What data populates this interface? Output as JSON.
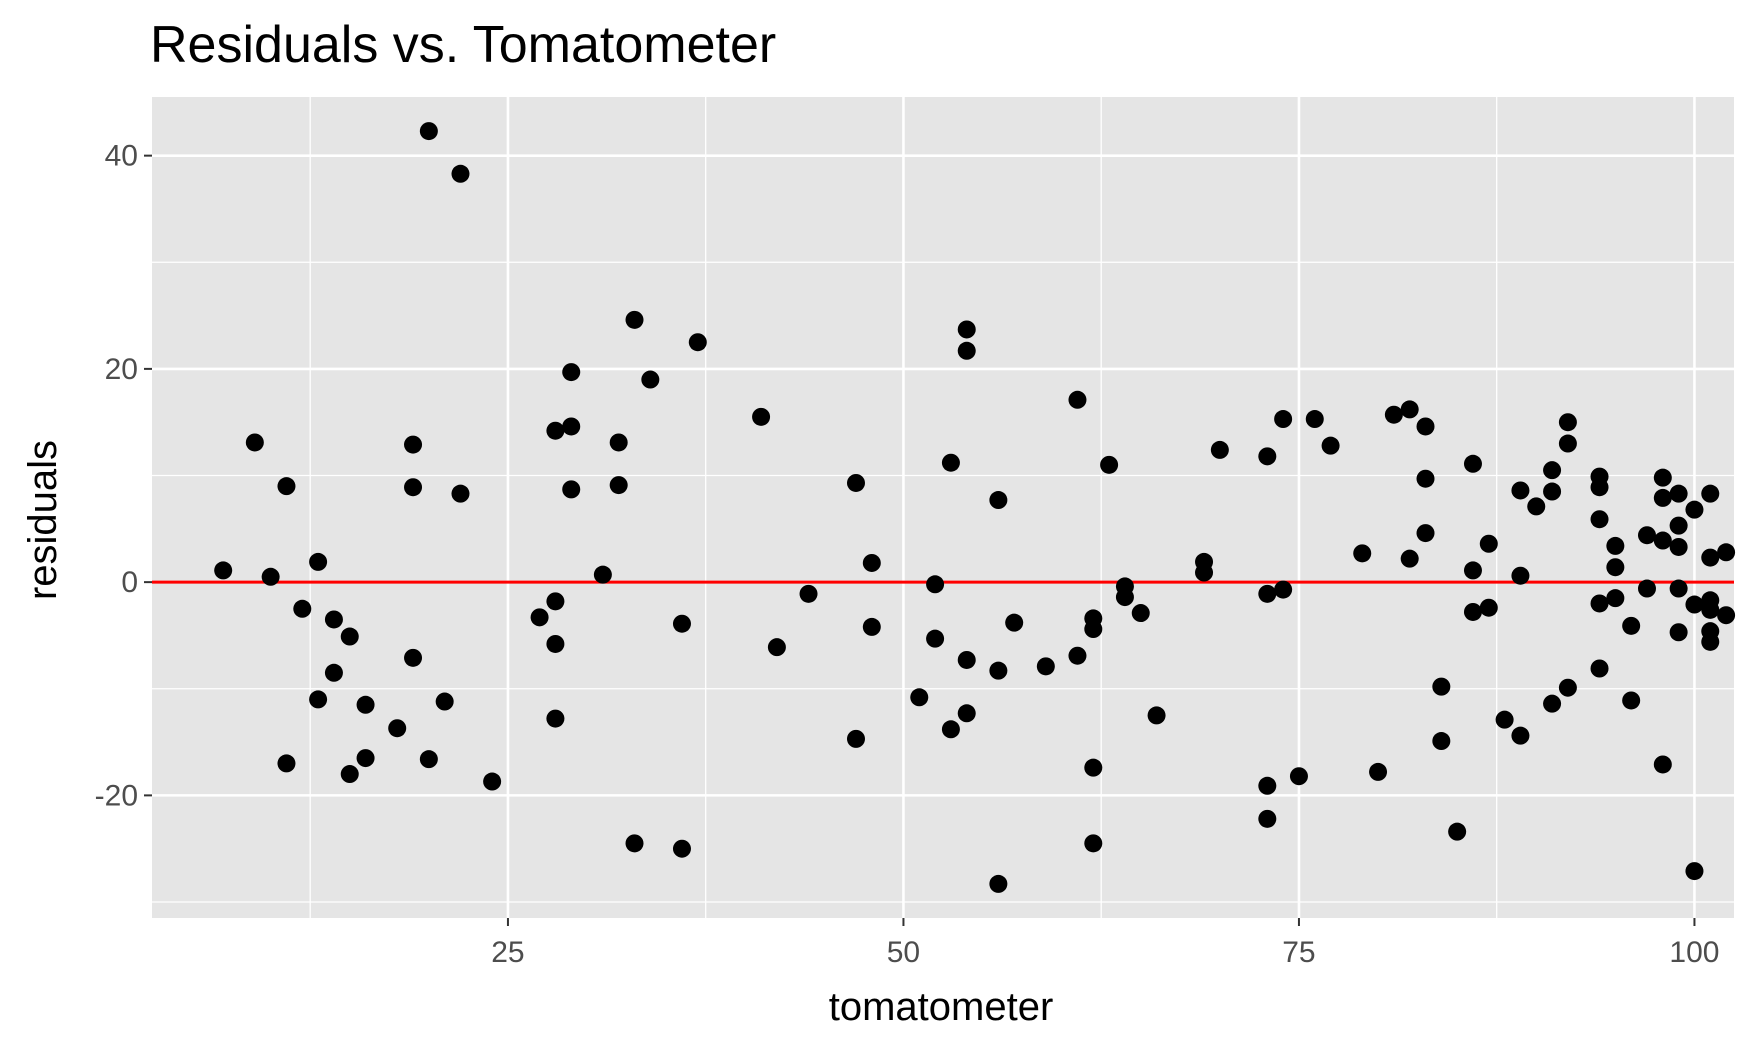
{
  "chart_data": {
    "type": "scatter",
    "title": "Residuals vs. Tomatometer",
    "xlabel": "tomatometer",
    "ylabel": "residuals",
    "xlim": [
      2.5,
      102.5
    ],
    "ylim": [
      -31.5,
      45.5
    ],
    "x_ticks": [
      25,
      50,
      75,
      100
    ],
    "x_tick_labels": [
      "25",
      "50",
      "75",
      "100"
    ],
    "y_ticks": [
      -20,
      0,
      20,
      40
    ],
    "y_tick_labels": [
      "-20",
      "0",
      "20",
      "40"
    ],
    "x_minor_ticks": [
      12.5,
      37.5,
      62.5,
      87.5
    ],
    "y_minor_ticks": [
      -30,
      -10,
      10,
      30
    ],
    "grid": true,
    "panel_background": "#e5e5e5",
    "point_color": "#000000",
    "reference_line": {
      "y": 0,
      "color": "#ff0000"
    },
    "points": [
      {
        "x": 7,
        "y": 1.1
      },
      {
        "x": 9,
        "y": 13.1
      },
      {
        "x": 10,
        "y": 0.5
      },
      {
        "x": 11,
        "y": 9.0
      },
      {
        "x": 11,
        "y": -17.0
      },
      {
        "x": 12,
        "y": -2.5
      },
      {
        "x": 13,
        "y": 1.9
      },
      {
        "x": 13,
        "y": -11.0
      },
      {
        "x": 14,
        "y": -3.5
      },
      {
        "x": 14,
        "y": -8.5
      },
      {
        "x": 15,
        "y": -5.1
      },
      {
        "x": 15,
        "y": -18.0
      },
      {
        "x": 16,
        "y": -11.5
      },
      {
        "x": 16,
        "y": -16.5
      },
      {
        "x": 18,
        "y": -13.7
      },
      {
        "x": 19,
        "y": 12.9
      },
      {
        "x": 19,
        "y": 8.9
      },
      {
        "x": 19,
        "y": -7.1
      },
      {
        "x": 20,
        "y": 42.3
      },
      {
        "x": 20,
        "y": -16.6
      },
      {
        "x": 21,
        "y": -11.2
      },
      {
        "x": 22,
        "y": 38.3
      },
      {
        "x": 22,
        "y": 8.3
      },
      {
        "x": 24,
        "y": -18.7
      },
      {
        "x": 27,
        "y": -3.3
      },
      {
        "x": 28,
        "y": 14.2
      },
      {
        "x": 28,
        "y": -1.8
      },
      {
        "x": 28,
        "y": -5.8
      },
      {
        "x": 28,
        "y": -12.8
      },
      {
        "x": 29,
        "y": 19.7
      },
      {
        "x": 29,
        "y": 14.6
      },
      {
        "x": 29,
        "y": 8.7
      },
      {
        "x": 31,
        "y": 0.7
      },
      {
        "x": 32,
        "y": 13.1
      },
      {
        "x": 32,
        "y": 9.1
      },
      {
        "x": 33,
        "y": 24.6
      },
      {
        "x": 33,
        "y": -24.5
      },
      {
        "x": 34,
        "y": 19.0
      },
      {
        "x": 36,
        "y": -3.9
      },
      {
        "x": 36,
        "y": -25.0
      },
      {
        "x": 37,
        "y": 22.5
      },
      {
        "x": 41,
        "y": 15.5
      },
      {
        "x": 42,
        "y": -6.1
      },
      {
        "x": 44,
        "y": -1.1
      },
      {
        "x": 47,
        "y": 9.3
      },
      {
        "x": 47,
        "y": -14.7
      },
      {
        "x": 48,
        "y": 1.8
      },
      {
        "x": 48,
        "y": -4.2
      },
      {
        "x": 51,
        "y": -10.8
      },
      {
        "x": 52,
        "y": -0.2
      },
      {
        "x": 52,
        "y": -5.3
      },
      {
        "x": 53,
        "y": 11.2
      },
      {
        "x": 53,
        "y": -13.8
      },
      {
        "x": 54,
        "y": 23.7
      },
      {
        "x": 54,
        "y": 21.7
      },
      {
        "x": 54,
        "y": -7.3
      },
      {
        "x": 54,
        "y": -12.3
      },
      {
        "x": 56,
        "y": 7.7
      },
      {
        "x": 56,
        "y": -8.3
      },
      {
        "x": 56,
        "y": -28.3
      },
      {
        "x": 57,
        "y": -3.8
      },
      {
        "x": 59,
        "y": -7.9
      },
      {
        "x": 61,
        "y": 17.1
      },
      {
        "x": 61,
        "y": -6.9
      },
      {
        "x": 62,
        "y": -3.4
      },
      {
        "x": 62,
        "y": -4.4
      },
      {
        "x": 62,
        "y": -17.4
      },
      {
        "x": 62,
        "y": -24.5
      },
      {
        "x": 63,
        "y": 11.0
      },
      {
        "x": 64,
        "y": -0.4
      },
      {
        "x": 64,
        "y": -1.4
      },
      {
        "x": 65,
        "y": -2.9
      },
      {
        "x": 66,
        "y": -12.5
      },
      {
        "x": 69,
        "y": 1.9
      },
      {
        "x": 69,
        "y": 0.9
      },
      {
        "x": 70,
        "y": 12.4
      },
      {
        "x": 73,
        "y": 11.8
      },
      {
        "x": 73,
        "y": -1.1
      },
      {
        "x": 73,
        "y": -19.1
      },
      {
        "x": 73,
        "y": -22.2
      },
      {
        "x": 74,
        "y": 15.3
      },
      {
        "x": 74,
        "y": -0.7
      },
      {
        "x": 75,
        "y": -18.2
      },
      {
        "x": 76,
        "y": 15.3
      },
      {
        "x": 77,
        "y": 12.8
      },
      {
        "x": 79,
        "y": 2.7
      },
      {
        "x": 80,
        "y": -17.8
      },
      {
        "x": 81,
        "y": 15.7
      },
      {
        "x": 82,
        "y": 16.2
      },
      {
        "x": 82,
        "y": 2.2
      },
      {
        "x": 83,
        "y": 14.6
      },
      {
        "x": 83,
        "y": 9.7
      },
      {
        "x": 83,
        "y": 4.6
      },
      {
        "x": 84,
        "y": -9.8
      },
      {
        "x": 84,
        "y": -14.9
      },
      {
        "x": 85,
        "y": -23.4
      },
      {
        "x": 86,
        "y": 11.1
      },
      {
        "x": 86,
        "y": 1.1
      },
      {
        "x": 86,
        "y": -2.8
      },
      {
        "x": 87,
        "y": 3.6
      },
      {
        "x": 87,
        "y": -2.4
      },
      {
        "x": 88,
        "y": -12.9
      },
      {
        "x": 89,
        "y": 8.6
      },
      {
        "x": 89,
        "y": 0.6
      },
      {
        "x": 89,
        "y": -14.4
      },
      {
        "x": 90,
        "y": 7.1
      },
      {
        "x": 91,
        "y": 10.5
      },
      {
        "x": 91,
        "y": 8.5
      },
      {
        "x": 91,
        "y": -11.4
      },
      {
        "x": 92,
        "y": 15.0
      },
      {
        "x": 92,
        "y": 13.0
      },
      {
        "x": 92,
        "y": -9.9
      },
      {
        "x": 94,
        "y": 9.9
      },
      {
        "x": 94,
        "y": 8.9
      },
      {
        "x": 94,
        "y": 5.9
      },
      {
        "x": 94,
        "y": -2.0
      },
      {
        "x": 94,
        "y": -8.1
      },
      {
        "x": 95,
        "y": 3.4
      },
      {
        "x": 95,
        "y": 1.4
      },
      {
        "x": 95,
        "y": -1.5
      },
      {
        "x": 96,
        "y": -4.1
      },
      {
        "x": 96,
        "y": -11.1
      },
      {
        "x": 97,
        "y": 4.4
      },
      {
        "x": 97,
        "y": -0.6
      },
      {
        "x": 98,
        "y": 9.8
      },
      {
        "x": 98,
        "y": 7.9
      },
      {
        "x": 98,
        "y": 3.9
      },
      {
        "x": 98,
        "y": -17.1
      },
      {
        "x": 99,
        "y": 8.3
      },
      {
        "x": 99,
        "y": 5.3
      },
      {
        "x": 99,
        "y": 3.3
      },
      {
        "x": 99,
        "y": -0.6
      },
      {
        "x": 99,
        "y": -4.7
      },
      {
        "x": 100,
        "y": 6.8
      },
      {
        "x": 100,
        "y": -2.1
      },
      {
        "x": 100,
        "y": -27.1
      },
      {
        "x": 101,
        "y": 8.3
      },
      {
        "x": 101,
        "y": 2.3
      },
      {
        "x": 101,
        "y": -1.7
      },
      {
        "x": 101,
        "y": -2.6
      },
      {
        "x": 101,
        "y": -4.6
      },
      {
        "x": 101,
        "y": -5.6
      },
      {
        "x": 102,
        "y": 2.8
      },
      {
        "x": 102,
        "y": -3.1
      }
    ]
  }
}
